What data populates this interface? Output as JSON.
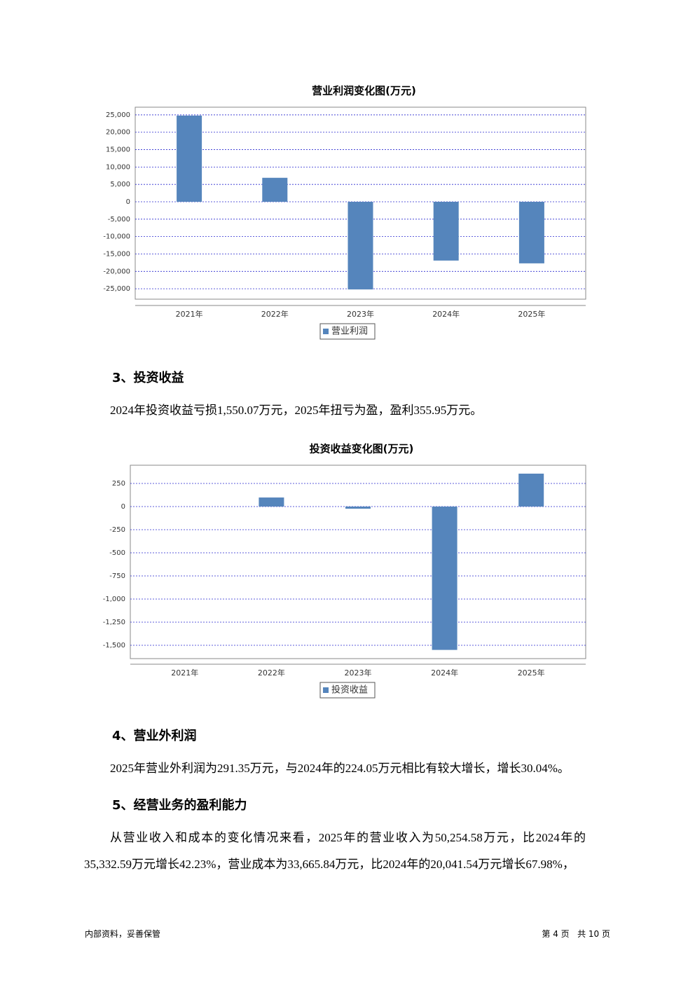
{
  "chart_data": [
    {
      "type": "bar",
      "title": "营业利润变化图(万元)",
      "categories": [
        "2021年",
        "2022年",
        "2023年",
        "2024年",
        "2025年"
      ],
      "series": [
        {
          "name": "营业利润",
          "color": "#5585bc",
          "values": [
            24800,
            6900,
            -25200,
            -16900,
            -17700
          ]
        }
      ],
      "ylim": [
        -28000,
        27200
      ],
      "yticks": [
        {
          "value": 25000,
          "label": "25,000"
        },
        {
          "value": 20000,
          "label": "20,000"
        },
        {
          "value": 15000,
          "label": "15,000"
        },
        {
          "value": 10000,
          "label": "10,000"
        },
        {
          "value": 5000,
          "label": "5,000"
        },
        0,
        {
          "value": -5000,
          "label": "-5,000"
        },
        {
          "value": -10000,
          "label": "-10,000"
        },
        {
          "value": -15000,
          "label": "-15,000"
        },
        {
          "value": -20000,
          "label": "-20,000"
        },
        {
          "value": -25000,
          "label": "-25,000"
        }
      ],
      "grid": true,
      "legend": "bottom"
    },
    {
      "type": "bar",
      "title": "投资收益变化图(万元)",
      "categories": [
        "2021年",
        "2022年",
        "2023年",
        "2024年",
        "2025年"
      ],
      "series": [
        {
          "name": "投资收益",
          "color": "#5585bc",
          "values": [
            0,
            98,
            -23,
            -1550.07,
            355.95
          ]
        }
      ],
      "ylim": [
        -1644,
        447
      ],
      "yticks": [
        250,
        0,
        -250,
        -500,
        -750,
        {
          "value": -1000,
          "label": "-1,000"
        },
        {
          "value": -1250,
          "label": "-1,250"
        },
        {
          "value": -1500,
          "label": "-1,500"
        }
      ],
      "grid": true,
      "legend": "bottom"
    }
  ],
  "sections": [
    {
      "heading": "3、投资收益",
      "paragraph": "2024年投资收益亏损1,550.07万元，2025年扭亏为盈，盈利355.95万元。"
    },
    {
      "heading": "4、营业外利润",
      "paragraph": "2025年营业外利润为291.35万元，与2024年的224.05万元相比有较大增长，增长30.04%。"
    },
    {
      "heading": "5、经营业务的盈利能力",
      "paragraph": "从营业收入和成本的变化情况来看，2025年的营业收入为50,254.58万元，比2024年的35,332.59万元增长42.23%，营业成本为33,665.84万元，比2024年的20,041.54万元增长67.98%，"
    }
  ],
  "footer": {
    "left": "内部资料，妥善保管",
    "right": "第 4 页   共 10 页"
  }
}
